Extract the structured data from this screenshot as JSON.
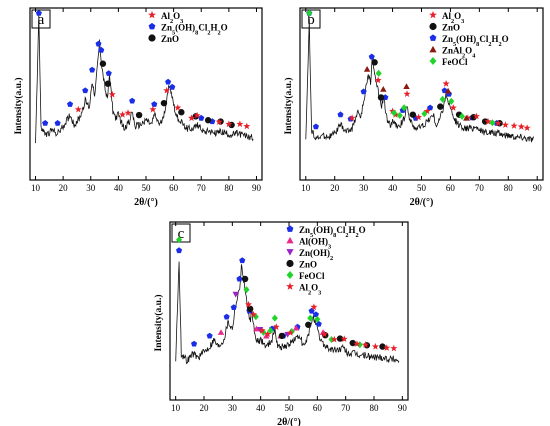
{
  "chart_data": [
    {
      "type": "line",
      "panel_label": "a",
      "xlabel": "2θ/(°)",
      "ylabel": "Intensity(a.u.)",
      "xlim": [
        8,
        92
      ],
      "ylim": [
        0,
        100
      ],
      "xticks": [
        "10",
        "20",
        "30",
        "40",
        "50",
        "60",
        "70",
        "80",
        "90"
      ],
      "legend_position": "top-right",
      "legend": [
        {
          "symbol": "star",
          "color": "#e8202a",
          "label": "Al2O3",
          "label_html": "Al<tspan baseline-shift='sub' font-size='6'>2</tspan>O<tspan baseline-shift='sub' font-size='6'>3</tspan>"
        },
        {
          "symbol": "pentagon",
          "color": "#1a2ee8",
          "label": "Zn5(OH)8Cl2H2O"
        },
        {
          "symbol": "circle",
          "color": "#111111",
          "label": "ZnO"
        }
      ],
      "pattern": [
        [
          10,
          22
        ],
        [
          11.2,
          96
        ],
        [
          12,
          30
        ],
        [
          14,
          26
        ],
        [
          16,
          29
        ],
        [
          18,
          27
        ],
        [
          20,
          31
        ],
        [
          22.5,
          38
        ],
        [
          24,
          32
        ],
        [
          26,
          36
        ],
        [
          28,
          46
        ],
        [
          29.5,
          42
        ],
        [
          30.5,
          58
        ],
        [
          31.5,
          49
        ],
        [
          32.5,
          68
        ],
        [
          33.2,
          80
        ],
        [
          34,
          66
        ],
        [
          35,
          55
        ],
        [
          36,
          46
        ],
        [
          36.8,
          62
        ],
        [
          38,
          40
        ],
        [
          39,
          36
        ],
        [
          40,
          38
        ],
        [
          42,
          30
        ],
        [
          44,
          34
        ],
        [
          45,
          40
        ],
        [
          46,
          31
        ],
        [
          48,
          32
        ],
        [
          50,
          35
        ],
        [
          52,
          32
        ],
        [
          53,
          38
        ],
        [
          55,
          32
        ],
        [
          56,
          35
        ],
        [
          57.5,
          46
        ],
        [
          58.5,
          56
        ],
        [
          59.5,
          48
        ],
        [
          61,
          37
        ],
        [
          63,
          33
        ],
        [
          65,
          30
        ],
        [
          67,
          30
        ],
        [
          69,
          32
        ],
        [
          71,
          28
        ],
        [
          73,
          29
        ],
        [
          75,
          27
        ],
        [
          77,
          28
        ],
        [
          79,
          27
        ],
        [
          81,
          26
        ],
        [
          83,
          27
        ],
        [
          85,
          26
        ],
        [
          87,
          25
        ],
        [
          89,
          25
        ]
      ],
      "markers": [
        {
          "symbol": "pentagon",
          "color": "#1a2ee8",
          "x": [
            11.2,
            13.5,
            18,
            22.5,
            28,
            30.5,
            32.8,
            33.8,
            36.5,
            45,
            53,
            58,
            59.5,
            70,
            74
          ]
        },
        {
          "symbol": "circle",
          "color": "#111111",
          "x": [
            34.4,
            36.2,
            47.5,
            56.5,
            62.8,
            68,
            72.5,
            77,
            81
          ]
        },
        {
          "symbol": "star",
          "color": "#e8202a",
          "x": [
            25.5,
            37.8,
            41.5,
            43.5,
            52.5,
            57.5,
            61.5,
            66.5,
            68.5,
            76.5,
            80,
            84,
            86.5
          ]
        }
      ]
    },
    {
      "type": "line",
      "panel_label": "b",
      "xlabel": "2θ/(°)",
      "ylabel": "Intensity(a.u.)",
      "xlim": [
        8,
        92
      ],
      "ylim": [
        0,
        100
      ],
      "xticks": [
        "10",
        "20",
        "30",
        "40",
        "50",
        "60",
        "70",
        "80",
        "90"
      ],
      "legend_position": "top-right",
      "legend": [
        {
          "symbol": "star",
          "color": "#e8202a",
          "label": "Al2O3"
        },
        {
          "symbol": "circle",
          "color": "#111111",
          "label": "ZnO"
        },
        {
          "symbol": "pentagon",
          "color": "#1a2ee8",
          "label": "Zn5(OH)8Cl2H2O"
        },
        {
          "symbol": "triangle",
          "color": "#8b1a10",
          "label": "ZnAl2O4"
        },
        {
          "symbol": "diamond",
          "color": "#22d32c",
          "label": "FeOCl"
        }
      ],
      "pattern": [
        [
          10,
          24
        ],
        [
          11.2,
          92
        ],
        [
          12,
          28
        ],
        [
          14,
          24
        ],
        [
          16,
          26
        ],
        [
          18,
          25
        ],
        [
          20,
          27
        ],
        [
          22,
          32
        ],
        [
          24,
          28
        ],
        [
          26,
          30
        ],
        [
          28,
          40
        ],
        [
          29,
          36
        ],
        [
          30.5,
          50
        ],
        [
          31.5,
          62
        ],
        [
          32.5,
          56
        ],
        [
          33,
          72
        ],
        [
          34,
          60
        ],
        [
          35,
          52
        ],
        [
          36,
          42
        ],
        [
          37,
          48
        ],
        [
          38,
          36
        ],
        [
          39,
          32
        ],
        [
          40,
          34
        ],
        [
          42,
          30
        ],
        [
          44,
          36
        ],
        [
          45,
          44
        ],
        [
          46,
          34
        ],
        [
          48,
          30
        ],
        [
          50,
          31
        ],
        [
          52,
          34
        ],
        [
          54,
          38
        ],
        [
          55,
          32
        ],
        [
          56,
          34
        ],
        [
          57.5,
          42
        ],
        [
          58.5,
          50
        ],
        [
          59.5,
          44
        ],
        [
          61,
          36
        ],
        [
          63,
          32
        ],
        [
          65,
          30
        ],
        [
          67,
          30
        ],
        [
          69,
          31
        ],
        [
          71,
          28
        ],
        [
          73,
          28
        ],
        [
          75,
          27
        ],
        [
          77,
          27
        ],
        [
          79,
          26
        ],
        [
          81,
          26
        ],
        [
          83,
          25
        ],
        [
          85,
          25
        ],
        [
          87,
          24
        ],
        [
          89,
          24
        ]
      ],
      "markers": [
        {
          "symbol": "pentagon",
          "color": "#1a2ee8",
          "x": [
            11.2,
            13.5,
            22,
            25.5,
            30,
            32.8,
            37.5,
            43.5,
            48,
            53,
            58,
            59.5,
            67.5,
            76
          ]
        },
        {
          "symbol": "circle",
          "color": "#111111",
          "x": [
            33.8,
            36,
            47,
            56.5,
            63,
            68,
            72,
            77
          ]
        },
        {
          "symbol": "star",
          "color": "#e8202a",
          "x": [
            26,
            35,
            40,
            41,
            45,
            49,
            52,
            58.5,
            61,
            66,
            69,
            73,
            76.5,
            79,
            82,
            84.5,
            86.5
          ]
        },
        {
          "symbol": "triangle",
          "color": "#8b1a10",
          "x": [
            31.2,
            36.8,
            44.8,
            59.2,
            65.5
          ]
        },
        {
          "symbol": "diamond",
          "color": "#22d32c",
          "x": [
            11.2,
            35.2,
            40.5,
            42.5,
            44,
            51,
            57.3,
            60.3,
            64,
            74.5
          ]
        }
      ]
    },
    {
      "type": "line",
      "panel_label": "c",
      "xlabel": "2θ/(°)",
      "ylabel": "Intensity(a.u.)",
      "xlim": [
        8,
        92
      ],
      "ylim": [
        0,
        100
      ],
      "xticks": [
        "10",
        "20",
        "30",
        "40",
        "50",
        "60",
        "70",
        "80",
        "90"
      ],
      "legend_position": "top-right",
      "legend": [
        {
          "symbol": "pentagon",
          "color": "#1a2ee8",
          "label": "Zn5(OH)8Cl2H2O"
        },
        {
          "symbol": "triangle",
          "color": "#e82a8c",
          "label": "Al(OH)3"
        },
        {
          "symbol": "triangle-down",
          "color": "#9b22c8",
          "label": "Zn(OH)2"
        },
        {
          "symbol": "circle",
          "color": "#111111",
          "label": "ZnO"
        },
        {
          "symbol": "diamond",
          "color": "#22d32c",
          "label": "FeOCl"
        },
        {
          "symbol": "star",
          "color": "#e8202a",
          "label": "Al2O3"
        }
      ],
      "pattern": [
        [
          10,
          22
        ],
        [
          11.2,
          78
        ],
        [
          12,
          26
        ],
        [
          14,
          22
        ],
        [
          16,
          26
        ],
        [
          18,
          24
        ],
        [
          20,
          27
        ],
        [
          22,
          30
        ],
        [
          23.5,
          34
        ],
        [
          25,
          30
        ],
        [
          27,
          34
        ],
        [
          28.5,
          44
        ],
        [
          30,
          40
        ],
        [
          31,
          52
        ],
        [
          32.5,
          62
        ],
        [
          33.2,
          75
        ],
        [
          34,
          68
        ],
        [
          35,
          56
        ],
        [
          36,
          44
        ],
        [
          37,
          48
        ],
        [
          38,
          36
        ],
        [
          39,
          32
        ],
        [
          40,
          34
        ],
        [
          42,
          30
        ],
        [
          44,
          34
        ],
        [
          45,
          40
        ],
        [
          46,
          30
        ],
        [
          48,
          30
        ],
        [
          50,
          31
        ],
        [
          52,
          34
        ],
        [
          54,
          36
        ],
        [
          55,
          30
        ],
        [
          56,
          32
        ],
        [
          57.5,
          40
        ],
        [
          58.5,
          48
        ],
        [
          59.5,
          42
        ],
        [
          61,
          34
        ],
        [
          63,
          30
        ],
        [
          65,
          28
        ],
        [
          67,
          28
        ],
        [
          69,
          29
        ],
        [
          71,
          26
        ],
        [
          73,
          26
        ],
        [
          75,
          25
        ],
        [
          77,
          25
        ],
        [
          79,
          24
        ],
        [
          81,
          24
        ],
        [
          83,
          24
        ],
        [
          85,
          23
        ],
        [
          87,
          23
        ],
        [
          89,
          22
        ]
      ],
      "markers": [
        {
          "symbol": "pentagon",
          "color": "#1a2ee8",
          "x": [
            11.2,
            16.5,
            22,
            28,
            30.5,
            32.5,
            33.5,
            36,
            44,
            48,
            53,
            58,
            59.5,
            60.5
          ]
        },
        {
          "symbol": "triangle",
          "color": "#e82a8c",
          "x": [
            26,
            38.5,
            42,
            47,
            52.5,
            62
          ]
        },
        {
          "symbol": "triangle-down",
          "color": "#9b22c8",
          "x": [
            31.2,
            39.8,
            49.5
          ]
        },
        {
          "symbol": "circle",
          "color": "#111111",
          "x": [
            34.5,
            36.3,
            47.5,
            56.8,
            62.8,
            68,
            72.5,
            77.5,
            83
          ]
        },
        {
          "symbol": "diamond",
          "color": "#22d32c",
          "x": [
            11.2,
            35,
            38.3,
            41,
            43.5,
            45,
            51,
            57.5,
            60,
            65,
            75
          ]
        },
        {
          "symbol": "star",
          "color": "#e8202a",
          "x": [
            35.7,
            37.5,
            40.5,
            42.5,
            45.5,
            50.5,
            58.8,
            62.5,
            66,
            69.5,
            74,
            77,
            80.5,
            84.5,
            87
          ]
        }
      ]
    }
  ]
}
